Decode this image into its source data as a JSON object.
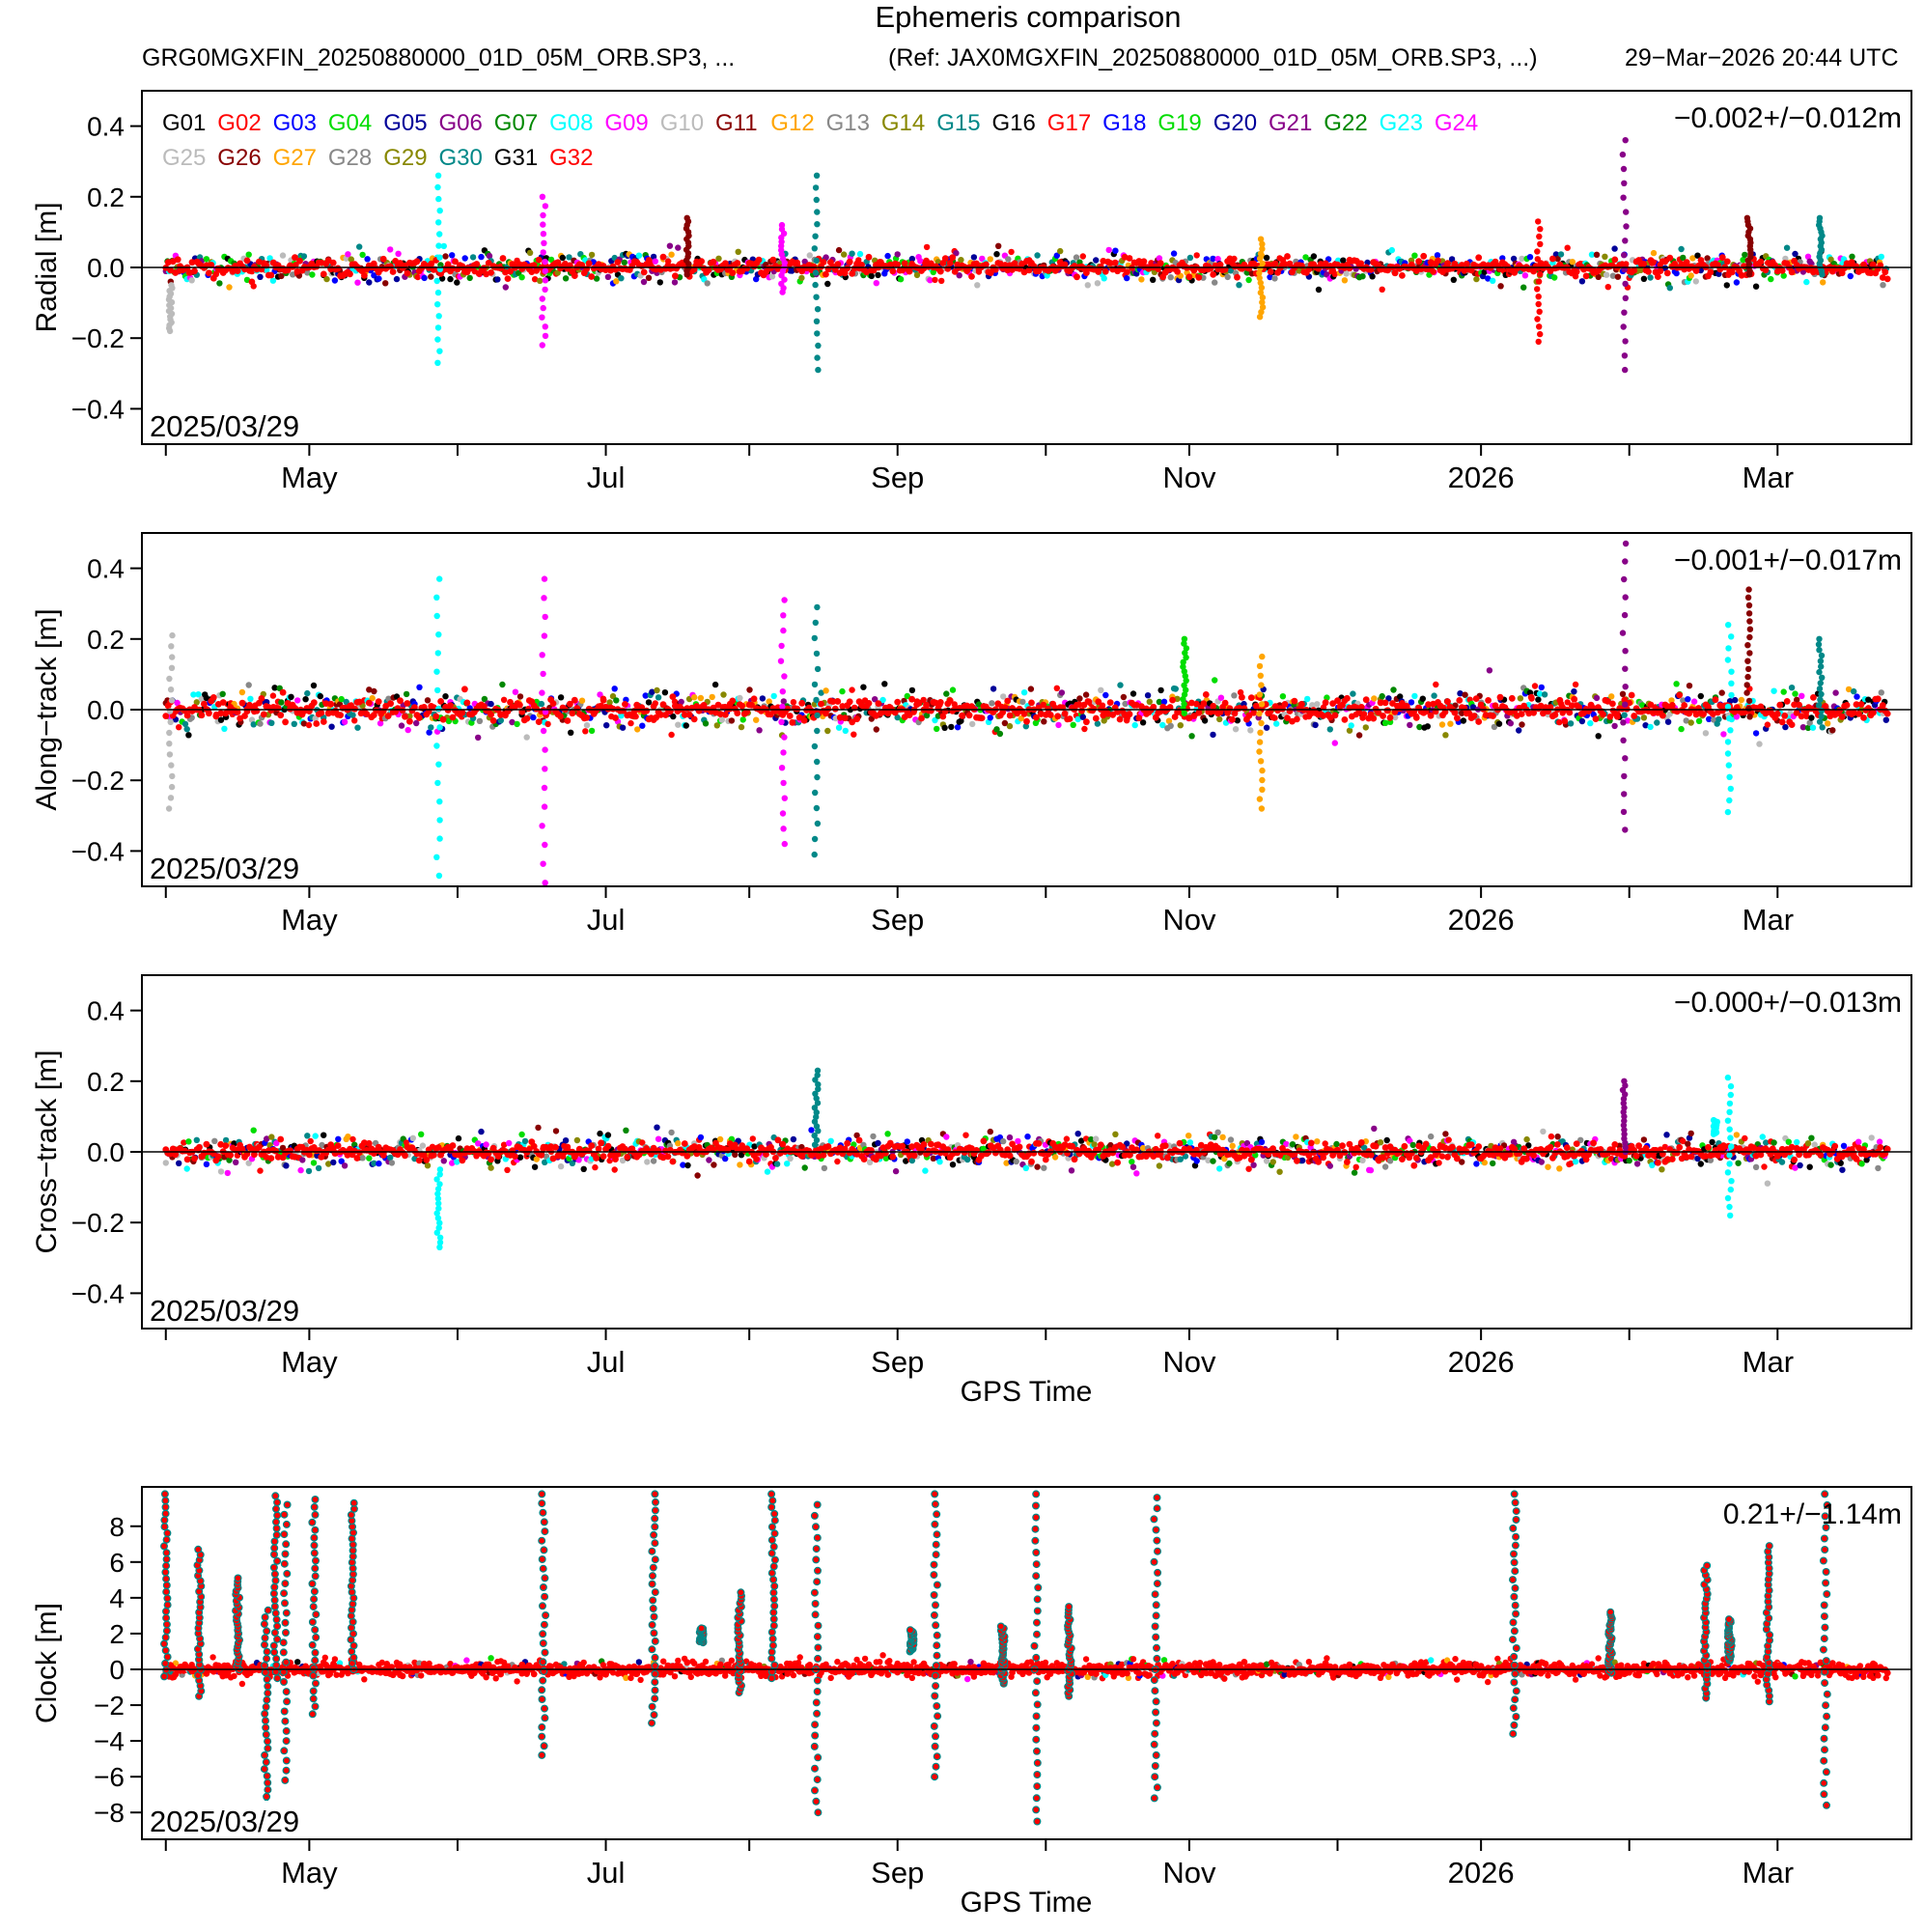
{
  "header": {
    "title": "Ephemeris comparison",
    "file": "GRG0MGXFIN_20250880000_01D_05M_ORB.SP3, ...",
    "reference": "(Ref: JAX0MGXFIN_20250880000_01D_05M_ORB.SP3, ...)",
    "timestamp": "29−Mar−2026 20:44 UTC"
  },
  "legend": {
    "satellites": [
      "G01",
      "G02",
      "G03",
      "G04",
      "G05",
      "G06",
      "G07",
      "G08",
      "G09",
      "G10",
      "G11",
      "G12",
      "G13",
      "G14",
      "G15",
      "G16",
      "G17",
      "G18",
      "G19",
      "G20",
      "G21",
      "G22",
      "G23",
      "G24",
      "G25",
      "G26",
      "G27",
      "G28",
      "G29",
      "G30",
      "G31",
      "G32"
    ],
    "colors": [
      "#000000",
      "#ff0000",
      "#0000ff",
      "#00dd00",
      "#000099",
      "#880088",
      "#008800",
      "#00ffff",
      "#ff00ff",
      "#bbbbbb",
      "#880000",
      "#ffa500",
      "#888888",
      "#888800",
      "#008888",
      "#000000",
      "#ff0000",
      "#0000ff",
      "#00dd00",
      "#000099",
      "#880088",
      "#008800",
      "#00ffff",
      "#ff00ff",
      "#bbbbbb",
      "#880000",
      "#ffa500",
      "#888888",
      "#888800",
      "#008888",
      "#000000",
      "#ff0000"
    ]
  },
  "chart_data": [
    {
      "type": "scatter",
      "ylabel": "Radial [m]",
      "stat": "−0.002+/−0.012m",
      "date_label": "2025/03/29",
      "xlabel": "",
      "ylim": [
        -0.5,
        0.5
      ],
      "yticks": [
        0.4,
        0.2,
        0.0,
        -0.2,
        -0.4
      ],
      "ytick_labels": [
        "0.4",
        "0.2",
        "0.0",
        "−0.2",
        "−0.4"
      ],
      "xlim_days": [
        -5,
        365
      ],
      "xtick_days": [
        0,
        30,
        61,
        92,
        122,
        153,
        184,
        214,
        245,
        275,
        306,
        337
      ],
      "xtick_labels": [
        {
          "day": 30,
          "label": "May"
        },
        {
          "day": 92,
          "label": "Jul"
        },
        {
          "day": 153,
          "label": "Sep"
        },
        {
          "day": 214,
          "label": "Nov"
        },
        {
          "day": 275,
          "label": "2026"
        },
        {
          "day": 335,
          "label": "Mar"
        }
      ],
      "noise_sigma": 0.012,
      "spikes": [
        {
          "day": 1,
          "min": -0.18,
          "max": -0.05,
          "sat": "G10"
        },
        {
          "day": 57,
          "min": -0.27,
          "max": 0.26,
          "sat": "G08"
        },
        {
          "day": 79,
          "min": -0.22,
          "max": 0.2,
          "sat": "G09"
        },
        {
          "day": 109,
          "min": -0.02,
          "max": 0.14,
          "sat": "G11"
        },
        {
          "day": 129,
          "min": -0.07,
          "max": 0.12,
          "sat": "G09"
        },
        {
          "day": 136,
          "min": -0.29,
          "max": 0.26,
          "sat": "G15"
        },
        {
          "day": 229,
          "min": -0.14,
          "max": 0.08,
          "sat": "G12"
        },
        {
          "day": 287,
          "min": -0.21,
          "max": 0.13,
          "sat": "G02"
        },
        {
          "day": 305,
          "min": -0.29,
          "max": 0.36,
          "sat": "G06"
        },
        {
          "day": 331,
          "min": -0.02,
          "max": 0.14,
          "sat": "G26"
        },
        {
          "day": 346,
          "min": -0.02,
          "max": 0.14,
          "sat": "G30"
        }
      ]
    },
    {
      "type": "scatter",
      "ylabel": "Along−track [m]",
      "stat": "−0.001+/−0.017m",
      "date_label": "2025/03/29",
      "xlabel": "",
      "ylim": [
        -0.5,
        0.5
      ],
      "yticks": [
        0.4,
        0.2,
        0.0,
        -0.2,
        -0.4
      ],
      "ytick_labels": [
        "0.4",
        "0.2",
        "0.0",
        "−0.2",
        "−0.4"
      ],
      "xlim_days": [
        -5,
        365
      ],
      "xtick_days": [
        0,
        30,
        61,
        92,
        122,
        153,
        184,
        214,
        245,
        275,
        306,
        337
      ],
      "xtick_labels": [
        {
          "day": 30,
          "label": "May"
        },
        {
          "day": 92,
          "label": "Jul"
        },
        {
          "day": 153,
          "label": "Sep"
        },
        {
          "day": 214,
          "label": "Nov"
        },
        {
          "day": 275,
          "label": "2026"
        },
        {
          "day": 335,
          "label": "Mar"
        }
      ],
      "noise_sigma": 0.017,
      "spikes": [
        {
          "day": 1,
          "min": -0.28,
          "max": 0.21,
          "sat": "G10"
        },
        {
          "day": 57,
          "min": -0.47,
          "max": 0.37,
          "sat": "G08"
        },
        {
          "day": 79,
          "min": -0.49,
          "max": 0.37,
          "sat": "G09"
        },
        {
          "day": 129,
          "min": -0.38,
          "max": 0.31,
          "sat": "G09"
        },
        {
          "day": 136,
          "min": -0.41,
          "max": 0.29,
          "sat": "G15"
        },
        {
          "day": 213,
          "min": -0.01,
          "max": 0.2,
          "sat": "G19"
        },
        {
          "day": 229,
          "min": -0.28,
          "max": 0.15,
          "sat": "G12"
        },
        {
          "day": 305,
          "min": -0.34,
          "max": 0.47,
          "sat": "G06"
        },
        {
          "day": 327,
          "min": -0.29,
          "max": 0.24,
          "sat": "G08"
        },
        {
          "day": 331,
          "min": -0.02,
          "max": 0.34,
          "sat": "G26"
        },
        {
          "day": 346,
          "min": -0.05,
          "max": 0.2,
          "sat": "G30"
        }
      ]
    },
    {
      "type": "scatter",
      "ylabel": "Cross−track [m]",
      "stat": "−0.000+/−0.013m",
      "date_label": "2025/03/29",
      "xlabel": "GPS Time",
      "ylim": [
        -0.5,
        0.5
      ],
      "yticks": [
        0.4,
        0.2,
        0.0,
        -0.2,
        -0.4
      ],
      "ytick_labels": [
        "0.4",
        "0.2",
        "0.0",
        "−0.2",
        "−0.4"
      ],
      "xlim_days": [
        -5,
        365
      ],
      "xtick_days": [
        0,
        30,
        61,
        92,
        122,
        153,
        184,
        214,
        245,
        275,
        306,
        337
      ],
      "xtick_labels": [
        {
          "day": 30,
          "label": "May"
        },
        {
          "day": 92,
          "label": "Jul"
        },
        {
          "day": 153,
          "label": "Sep"
        },
        {
          "day": 214,
          "label": "Nov"
        },
        {
          "day": 275,
          "label": "2026"
        },
        {
          "day": 335,
          "label": "Mar"
        }
      ],
      "noise_sigma": 0.013,
      "spikes": [
        {
          "day": 57,
          "min": -0.27,
          "max": -0.05,
          "sat": "G08"
        },
        {
          "day": 136,
          "min": 0.02,
          "max": 0.23,
          "sat": "G15"
        },
        {
          "day": 305,
          "min": 0.0,
          "max": 0.2,
          "sat": "G06"
        },
        {
          "day": 324,
          "min": 0.05,
          "max": 0.09,
          "sat": "G08"
        },
        {
          "day": 327,
          "min": -0.18,
          "max": 0.21,
          "sat": "G08"
        }
      ]
    },
    {
      "type": "scatter",
      "ylabel": "Clock [m]",
      "stat": "0.21+/−1.14m",
      "date_label": "2025/03/29",
      "xlabel": "GPS Time",
      "ylim": [
        -9.5,
        10.2
      ],
      "yticks": [
        8,
        6,
        4,
        2,
        0,
        -2,
        -4,
        -6,
        -8
      ],
      "ytick_labels": [
        "8",
        "6",
        "4",
        "2",
        "0",
        "−2",
        "−4",
        "−6",
        "−8"
      ],
      "xlim_days": [
        -5,
        365
      ],
      "xtick_days": [
        0,
        30,
        61,
        92,
        122,
        153,
        184,
        214,
        245,
        275,
        306,
        337
      ],
      "xtick_labels": [
        {
          "day": 30,
          "label": "May"
        },
        {
          "day": 92,
          "label": "Jul"
        },
        {
          "day": 153,
          "label": "Sep"
        },
        {
          "day": 214,
          "label": "Nov"
        },
        {
          "day": 275,
          "label": "2026"
        },
        {
          "day": 335,
          "label": "Mar"
        }
      ],
      "noise_sigma": 0.15,
      "spikes": [
        {
          "day": 0,
          "min": -0.4,
          "max": 9.8
        },
        {
          "day": 7,
          "min": -1.5,
          "max": 6.7
        },
        {
          "day": 15,
          "min": 0.0,
          "max": 5.1
        },
        {
          "day": 21,
          "min": -7.5,
          "max": 3.3
        },
        {
          "day": 23,
          "min": -0.5,
          "max": 9.7
        },
        {
          "day": 25,
          "min": -6.2,
          "max": 9.2
        },
        {
          "day": 31,
          "min": -2.5,
          "max": 9.5
        },
        {
          "day": 39,
          "min": 0.0,
          "max": 9.3
        },
        {
          "day": 79,
          "min": -4.8,
          "max": 9.8
        },
        {
          "day": 102,
          "min": -3.0,
          "max": 9.8
        },
        {
          "day": 112,
          "min": 1.5,
          "max": 2.3
        },
        {
          "day": 120,
          "min": -1.3,
          "max": 4.3
        },
        {
          "day": 127,
          "min": -0.5,
          "max": 9.8
        },
        {
          "day": 136,
          "min": -8.0,
          "max": 9.2
        },
        {
          "day": 156,
          "min": 1.0,
          "max": 2.2
        },
        {
          "day": 161,
          "min": -6.0,
          "max": 9.8
        },
        {
          "day": 175,
          "min": -0.8,
          "max": 2.4
        },
        {
          "day": 182,
          "min": -8.5,
          "max": 9.8
        },
        {
          "day": 189,
          "min": -1.5,
          "max": 3.5
        },
        {
          "day": 207,
          "min": -7.2,
          "max": 9.6
        },
        {
          "day": 282,
          "min": -3.6,
          "max": 9.8
        },
        {
          "day": 302,
          "min": -0.2,
          "max": 3.2
        },
        {
          "day": 322,
          "min": -1.6,
          "max": 5.8
        },
        {
          "day": 327,
          "min": 0.5,
          "max": 2.8
        },
        {
          "day": 335,
          "min": -1.8,
          "max": 6.9
        },
        {
          "day": 347,
          "min": -7.6,
          "max": 9.8
        }
      ]
    }
  ]
}
